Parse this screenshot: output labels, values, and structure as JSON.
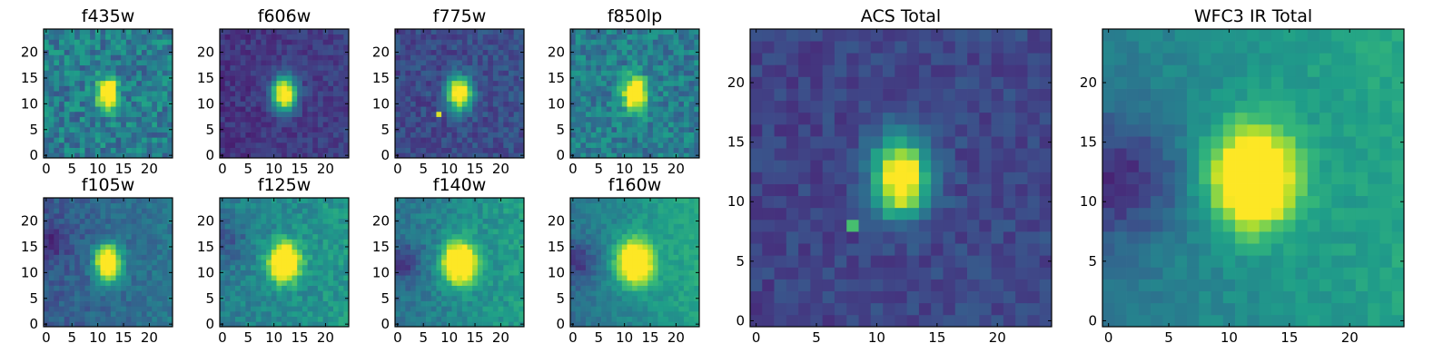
{
  "figure": {
    "colormap": "viridis",
    "colormap_stops": [
      "#440154",
      "#482878",
      "#3e4a89",
      "#31688e",
      "#26828e",
      "#1f9e89",
      "#35b779",
      "#6ece58",
      "#b5de2b",
      "#fde725"
    ]
  },
  "chart_data": [
    {
      "type": "heatmap",
      "title": "f435w",
      "grid": false,
      "size": [
        25,
        25
      ],
      "xlim": [
        0,
        24
      ],
      "ylim": [
        0,
        24
      ],
      "xticks": [
        0,
        5,
        10,
        15,
        20
      ],
      "yticks": [
        0,
        5,
        10,
        15,
        20
      ],
      "source": {
        "cx": 12,
        "cy": 12,
        "sx": 1.3,
        "sy": 2.0,
        "amp": 1.0
      },
      "background": 0.42,
      "noise": 0.16,
      "gradient": [
        0,
        0
      ],
      "darkblob": null,
      "seed": 11
    },
    {
      "type": "heatmap",
      "title": "f606w",
      "grid": false,
      "size": [
        25,
        25
      ],
      "xlim": [
        0,
        24
      ],
      "ylim": [
        0,
        24
      ],
      "xticks": [
        0,
        5,
        10,
        15,
        20
      ],
      "yticks": [
        0,
        5,
        10,
        15,
        20
      ],
      "source": {
        "cx": 12,
        "cy": 12,
        "sx": 1.6,
        "sy": 2.3,
        "amp": 1.0
      },
      "background": 0.15,
      "noise": 0.07,
      "gradient": [
        0.04,
        0
      ],
      "darkblob": null,
      "seed": 22
    },
    {
      "type": "heatmap",
      "title": "f775w",
      "grid": false,
      "size": [
        25,
        25
      ],
      "xlim": [
        0,
        24
      ],
      "ylim": [
        0,
        24
      ],
      "xticks": [
        0,
        5,
        10,
        15,
        20
      ],
      "yticks": [
        0,
        5,
        10,
        15,
        20
      ],
      "source": {
        "cx": 12,
        "cy": 12,
        "sx": 1.6,
        "sy": 2.2,
        "amp": 1.0
      },
      "background": 0.22,
      "noise": 0.09,
      "gradient": [
        0.02,
        0
      ],
      "darkblob": null,
      "hotpixel": [
        8,
        8,
        0.95
      ],
      "seed": 33
    },
    {
      "type": "heatmap",
      "title": "f850lp",
      "grid": false,
      "size": [
        25,
        25
      ],
      "xlim": [
        0,
        24
      ],
      "ylim": [
        0,
        24
      ],
      "xticks": [
        0,
        5,
        10,
        15,
        20
      ],
      "yticks": [
        0,
        5,
        10,
        15,
        20
      ],
      "source": {
        "cx": 12,
        "cy": 12,
        "sx": 1.6,
        "sy": 2.2,
        "amp": 0.9
      },
      "background": 0.42,
      "noise": 0.14,
      "gradient": [
        0,
        0
      ],
      "darkblob": null,
      "seed": 44
    },
    {
      "type": "heatmap",
      "title": "f105w",
      "grid": false,
      "size": [
        25,
        25
      ],
      "xlim": [
        0,
        24
      ],
      "ylim": [
        0,
        24
      ],
      "xticks": [
        0,
        5,
        10,
        15,
        20
      ],
      "yticks": [
        0,
        5,
        10,
        15,
        20
      ],
      "source": {
        "cx": 12,
        "cy": 12,
        "sx": 1.7,
        "sy": 2.3,
        "amp": 1.0
      },
      "background": 0.28,
      "noise": 0.08,
      "gradient": [
        0.12,
        0
      ],
      "darkblob": [
        1,
        16,
        4,
        0.14
      ],
      "seed": 55
    },
    {
      "type": "heatmap",
      "title": "f125w",
      "grid": false,
      "size": [
        25,
        25
      ],
      "xlim": [
        0,
        24
      ],
      "ylim": [
        0,
        24
      ],
      "xticks": [
        0,
        5,
        10,
        15,
        20
      ],
      "yticks": [
        0,
        5,
        10,
        15,
        20
      ],
      "source": {
        "cx": 12,
        "cy": 12,
        "sx": 2.0,
        "sy": 2.5,
        "amp": 1.0
      },
      "background": 0.42,
      "noise": 0.09,
      "gradient": [
        0.12,
        0
      ],
      "darkblob": [
        1,
        16,
        4,
        0.14
      ],
      "seed": 66
    },
    {
      "type": "heatmap",
      "title": "f140w",
      "grid": false,
      "size": [
        25,
        25
      ],
      "xlim": [
        0,
        24
      ],
      "ylim": [
        0,
        24
      ],
      "xticks": [
        0,
        5,
        10,
        15,
        20
      ],
      "yticks": [
        0,
        5,
        10,
        15,
        20
      ],
      "source": {
        "cx": 12,
        "cy": 12,
        "sx": 2.2,
        "sy": 2.7,
        "amp": 1.0
      },
      "background": 0.38,
      "noise": 0.08,
      "gradient": [
        0.18,
        0
      ],
      "darkblob": [
        1,
        12,
        4,
        0.2
      ],
      "seed": 77
    },
    {
      "type": "heatmap",
      "title": "f160w",
      "grid": false,
      "size": [
        25,
        25
      ],
      "xlim": [
        0,
        24
      ],
      "ylim": [
        0,
        24
      ],
      "xticks": [
        0,
        5,
        10,
        15,
        20
      ],
      "yticks": [
        0,
        5,
        10,
        15,
        20
      ],
      "source": {
        "cx": 12,
        "cy": 12,
        "sx": 2.3,
        "sy": 2.8,
        "amp": 1.0
      },
      "background": 0.36,
      "noise": 0.06,
      "gradient": [
        0.22,
        0.04
      ],
      "darkblob": [
        1,
        12,
        4,
        0.22
      ],
      "seed": 88
    },
    {
      "type": "heatmap",
      "title": "ACS Total",
      "grid": false,
      "size": [
        25,
        25
      ],
      "xlim": [
        0,
        24
      ],
      "ylim": [
        0,
        24
      ],
      "xticks": [
        0,
        5,
        10,
        15,
        20
      ],
      "yticks": [
        0,
        5,
        10,
        15,
        20
      ],
      "source": {
        "cx": 12,
        "cy": 12,
        "sx": 1.6,
        "sy": 2.2,
        "amp": 1.0
      },
      "background": 0.2,
      "noise": 0.07,
      "gradient": [
        0.02,
        0
      ],
      "darkblob": null,
      "hotpixel": [
        8,
        8,
        0.7
      ],
      "seed": 99
    },
    {
      "type": "heatmap",
      "title": "WFC3 IR Total",
      "grid": false,
      "size": [
        25,
        25
      ],
      "xlim": [
        0,
        24
      ],
      "ylim": [
        0,
        24
      ],
      "xticks": [
        0,
        5,
        10,
        15,
        20
      ],
      "yticks": [
        0,
        5,
        10,
        15,
        20
      ],
      "source": {
        "cx": 12,
        "cy": 12,
        "sx": 2.3,
        "sy": 2.8,
        "amp": 1.0
      },
      "background": 0.4,
      "noise": 0.05,
      "gradient": [
        0.18,
        0.03
      ],
      "darkblob": [
        1,
        12,
        5,
        0.3
      ],
      "seed": 111
    }
  ]
}
